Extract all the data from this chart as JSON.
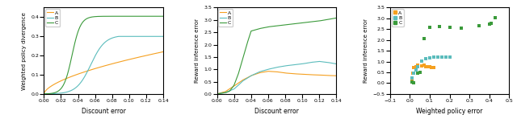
{
  "color_A": "#f5a020",
  "color_B": "#5bbcbc",
  "color_C": "#3a9a3a",
  "fig_width": 6.4,
  "fig_height": 1.58,
  "plot1": {
    "xlabel": "Discount error",
    "ylabel": "Weighted policy divergence",
    "xlim": [
      0.0,
      0.14
    ],
    "ylim": [
      0.0,
      0.45
    ]
  },
  "plot2": {
    "xlabel": "Discount error",
    "ylabel": "Reward inference error",
    "xlim": [
      0.0,
      0.14
    ],
    "ylim": [
      0.0,
      3.5
    ]
  },
  "plot3": {
    "xlabel": "Weighted policy error",
    "ylabel": "Reward inference error",
    "xlim": [
      -0.1,
      0.5
    ],
    "ylim": [
      -0.5,
      3.5
    ]
  },
  "scatter_A_x": [
    0.01,
    0.015,
    0.02,
    0.03,
    0.04,
    0.06,
    0.07,
    0.08,
    0.09,
    0.1,
    0.11,
    0.12
  ],
  "scatter_A_y": [
    0.22,
    0.45,
    0.72,
    0.78,
    0.82,
    0.8,
    0.82,
    0.76,
    0.78,
    0.76,
    0.74,
    0.72
  ],
  "scatter_B_x": [
    0.01,
    0.02,
    0.03,
    0.04,
    0.06,
    0.08,
    0.1,
    0.12,
    0.14,
    0.16,
    0.18,
    0.2
  ],
  "scatter_B_y": [
    0.25,
    0.48,
    0.62,
    0.75,
    1.02,
    1.12,
    1.18,
    1.2,
    1.22,
    1.22,
    1.2,
    1.22
  ],
  "scatter_C_x": [
    0.01,
    0.02,
    0.04,
    0.05,
    0.07,
    0.1,
    0.15,
    0.2,
    0.26,
    0.35,
    0.4,
    0.41,
    0.43
  ],
  "scatter_C_y": [
    0.05,
    0.0,
    0.45,
    0.52,
    2.05,
    2.6,
    2.62,
    2.6,
    2.55,
    2.65,
    2.73,
    2.78,
    3.05
  ]
}
